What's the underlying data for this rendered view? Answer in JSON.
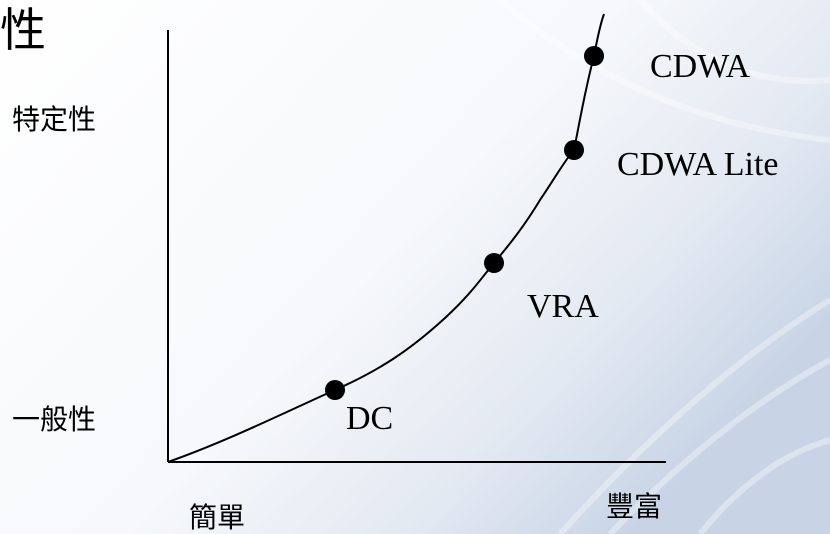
{
  "title_fragment": "性",
  "y_axis": {
    "top_label": "特定性",
    "bottom_label": "一般性"
  },
  "x_axis": {
    "left_label": "簡單",
    "right_label": "豐富"
  },
  "points": [
    {
      "label": "DC"
    },
    {
      "label": "VRA"
    },
    {
      "label": "CDWA Lite"
    },
    {
      "label": "CDWA"
    }
  ],
  "colors": {
    "ink": "#000000",
    "background_light": "#ffffff",
    "background_blue": "#c8d4e6"
  }
}
